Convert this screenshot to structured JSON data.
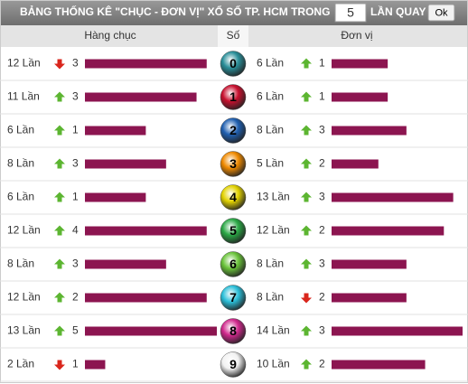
{
  "header": {
    "title": "BẢNG THỐNG KÊ \"CHỤC - ĐƠN VỊ\" XỔ SỐ TP. HCM TRONG",
    "input_value": "5",
    "suffix": "LẦN QUAY",
    "button": "Ok"
  },
  "columns": {
    "tens": "Hàng chục",
    "digit": "Số",
    "units": "Đơn vị"
  },
  "rows": [
    {
      "digit": "0",
      "tens": {
        "count": {
          "value": 12,
          "label": "12 Lần"
        },
        "trend": "down",
        "change": "3"
      },
      "units": {
        "count": {
          "value": 6,
          "label": "6 Lần"
        },
        "trend": "up",
        "change": "1"
      }
    },
    {
      "digit": "1",
      "tens": {
        "count": {
          "value": 11,
          "label": "11 Lần"
        },
        "trend": "up",
        "change": "3"
      },
      "units": {
        "count": {
          "value": 6,
          "label": "6 Lần"
        },
        "trend": "up",
        "change": "1"
      }
    },
    {
      "digit": "2",
      "tens": {
        "count": {
          "value": 6,
          "label": "6 Lần"
        },
        "trend": "up",
        "change": "1"
      },
      "units": {
        "count": {
          "value": 8,
          "label": "8 Lần"
        },
        "trend": "up",
        "change": "3"
      }
    },
    {
      "digit": "3",
      "tens": {
        "count": {
          "value": 8,
          "label": "8 Lần"
        },
        "trend": "up",
        "change": "3"
      },
      "units": {
        "count": {
          "value": 5,
          "label": "5 Lần"
        },
        "trend": "up",
        "change": "2"
      }
    },
    {
      "digit": "4",
      "tens": {
        "count": {
          "value": 6,
          "label": "6 Lần"
        },
        "trend": "up",
        "change": "1"
      },
      "units": {
        "count": {
          "value": 13,
          "label": "13 Lần"
        },
        "trend": "up",
        "change": "3"
      }
    },
    {
      "digit": "5",
      "tens": {
        "count": {
          "value": 12,
          "label": "12 Lần"
        },
        "trend": "up",
        "change": "4"
      },
      "units": {
        "count": {
          "value": 12,
          "label": "12 Lần"
        },
        "trend": "up",
        "change": "2"
      }
    },
    {
      "digit": "6",
      "tens": {
        "count": {
          "value": 8,
          "label": "8 Lần"
        },
        "trend": "up",
        "change": "3"
      },
      "units": {
        "count": {
          "value": 8,
          "label": "8 Lần"
        },
        "trend": "up",
        "change": "3"
      }
    },
    {
      "digit": "7",
      "tens": {
        "count": {
          "value": 12,
          "label": "12 Lần"
        },
        "trend": "up",
        "change": "2"
      },
      "units": {
        "count": {
          "value": 8,
          "label": "8 Lần"
        },
        "trend": "down",
        "change": "2"
      }
    },
    {
      "digit": "8",
      "tens": {
        "count": {
          "value": 13,
          "label": "13 Lần"
        },
        "trend": "up",
        "change": "5"
      },
      "units": {
        "count": {
          "value": 14,
          "label": "14 Lần"
        },
        "trend": "up",
        "change": "3"
      }
    },
    {
      "digit": "9",
      "tens": {
        "count": {
          "value": 2,
          "label": "2 Lần"
        },
        "trend": "down",
        "change": "1"
      },
      "units": {
        "count": {
          "value": 10,
          "label": "10 Lần"
        },
        "trend": "up",
        "change": "2"
      }
    }
  ]
}
